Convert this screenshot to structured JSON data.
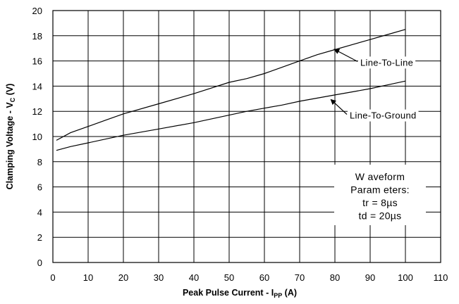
{
  "chart_data": {
    "type": "line",
    "xlabel": "Peak Pulse Current - I",
    "xlabel_sub": "PP",
    "xlabel_unit": " (A)",
    "ylabel": "Clamping Voltage - V",
    "ylabel_sub": "C",
    "ylabel_unit": " (V)",
    "xlim": [
      0,
      110
    ],
    "ylim": [
      0,
      20
    ],
    "x_ticks": [
      "0",
      "10",
      "20",
      "30",
      "40",
      "50",
      "60",
      "70",
      "80",
      "90",
      "100",
      "110"
    ],
    "y_ticks": [
      "0",
      "2",
      "4",
      "6",
      "8",
      "10",
      "12",
      "14",
      "16",
      "18",
      "20"
    ],
    "grid": true,
    "series": [
      {
        "name": "Line-To-Line",
        "x": [
          1,
          5,
          10,
          15,
          20,
          30,
          40,
          50,
          55,
          60,
          65,
          70,
          75,
          80,
          85,
          90,
          95,
          100
        ],
        "y": [
          9.7,
          10.3,
          10.8,
          11.3,
          11.8,
          12.6,
          13.4,
          14.3,
          14.6,
          15.0,
          15.5,
          16.0,
          16.5,
          16.9,
          17.3,
          17.7,
          18.1,
          18.5
        ]
      },
      {
        "name": "Line-To-Ground",
        "x": [
          1,
          5,
          10,
          15,
          20,
          30,
          40,
          45,
          50,
          55,
          60,
          65,
          70,
          75,
          80,
          85,
          90,
          95,
          100
        ],
        "y": [
          8.9,
          9.2,
          9.5,
          9.8,
          10.1,
          10.6,
          11.1,
          11.4,
          11.7,
          12.0,
          12.25,
          12.5,
          12.8,
          13.05,
          13.3,
          13.55,
          13.8,
          14.1,
          14.4
        ]
      }
    ],
    "annotations": [
      {
        "text": "Line-To-Line",
        "arrow_from": [
          86,
          15.9
        ],
        "arrow_to": [
          80,
          16.9
        ]
      },
      {
        "text": "Line-To-Ground",
        "arrow_from": [
          83,
          11.7
        ],
        "arrow_to": [
          79,
          12.9
        ]
      }
    ],
    "info_box": {
      "lines": [
        "W aveform",
        "Param eters:",
        "tr = 8µs",
        "td = 20µs"
      ]
    }
  }
}
